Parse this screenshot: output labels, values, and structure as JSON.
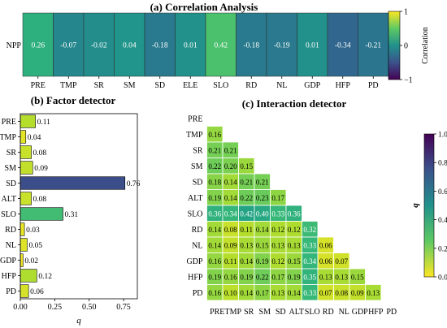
{
  "chart_data": [
    {
      "type": "heatmap",
      "title": "(a) Correlation Analysis",
      "row_labels": [
        "NPP"
      ],
      "categories": [
        "PRE",
        "TMP",
        "SR",
        "SM",
        "SD",
        "ELE",
        "SLO",
        "RD",
        "NL",
        "GDP",
        "HFP",
        "PD"
      ],
      "values": [
        [
          0.26,
          -0.07,
          -0.02,
          0.04,
          -0.18,
          0.01,
          0.42,
          -0.18,
          -0.19,
          0.01,
          -0.34,
          -0.21
        ]
      ],
      "value_labels": [
        "0.26",
        "-0.07",
        "-0.02",
        "0.04",
        "-0.18",
        "0.01",
        "0.42",
        "-0.18",
        "-0.19",
        "0.01",
        "-0.34",
        "-0.21"
      ],
      "vlim": [
        -1,
        1
      ],
      "colorbar": {
        "label": "Correlation",
        "ticks": [
          -1,
          0,
          1
        ],
        "tick_labels": [
          "−1",
          "0",
          "1"
        ]
      }
    },
    {
      "type": "bar",
      "orientation": "horizontal",
      "title": "(b) Factor detector",
      "categories": [
        "PRE",
        "TMP",
        "SR",
        "SM",
        "SD",
        "ALT",
        "SLO",
        "RD",
        "NL",
        "GDP",
        "HFP",
        "PD"
      ],
      "values": [
        0.11,
        0.04,
        0.08,
        0.09,
        0.76,
        0.08,
        0.31,
        0.03,
        0.05,
        0.02,
        0.12,
        0.06
      ],
      "value_labels": [
        "0.11",
        "0.04",
        "0.08",
        "0.09",
        "0.76",
        "0.08",
        "0.31",
        "0.03",
        "0.05",
        "0.02",
        "0.12",
        "0.06"
      ],
      "xlabel": "q",
      "xlim": [
        0,
        0.85
      ],
      "xticks": [
        0,
        0.25,
        0.5,
        0.75
      ],
      "xtick_labels": [
        "0.00",
        "0.25",
        "0.50",
        "0.75"
      ]
    },
    {
      "type": "heatmap",
      "title": "(c) Interaction detector",
      "categories": [
        "PRE",
        "TMP",
        "SR",
        "SM",
        "SD",
        "ALT",
        "SLO",
        "RD",
        "NL",
        "GDP",
        "HFP",
        "PD"
      ],
      "rows": [
        [],
        [
          0.16
        ],
        [
          0.21,
          0.21
        ],
        [
          0.22,
          0.2,
          0.15
        ],
        [
          0.18,
          0.14,
          0.21,
          0.21
        ],
        [
          0.19,
          0.14,
          0.22,
          0.23,
          0.17
        ],
        [
          0.36,
          0.34,
          0.42,
          0.4,
          0.33,
          0.36
        ],
        [
          0.14,
          0.08,
          0.11,
          0.14,
          0.12,
          0.12,
          0.32
        ],
        [
          0.14,
          0.09,
          0.13,
          0.15,
          0.13,
          0.13,
          0.33,
          0.06
        ],
        [
          0.16,
          0.11,
          0.14,
          0.19,
          0.12,
          0.15,
          0.34,
          0.06,
          0.07
        ],
        [
          0.19,
          0.16,
          0.19,
          0.22,
          0.17,
          0.19,
          0.35,
          0.13,
          0.13,
          0.15
        ],
        [
          0.16,
          0.1,
          0.14,
          0.17,
          0.13,
          0.14,
          0.33,
          0.07,
          0.08,
          0.09,
          0.13
        ]
      ],
      "vlim": [
        0,
        1
      ],
      "colorbar": {
        "label": "q",
        "ticks": [
          0,
          0.2,
          0.4,
          0.6,
          0.8,
          1.0
        ],
        "tick_labels": [
          "0.0",
          "0.2",
          "0.4",
          "0.6",
          "0.8",
          "1.0"
        ]
      }
    }
  ]
}
